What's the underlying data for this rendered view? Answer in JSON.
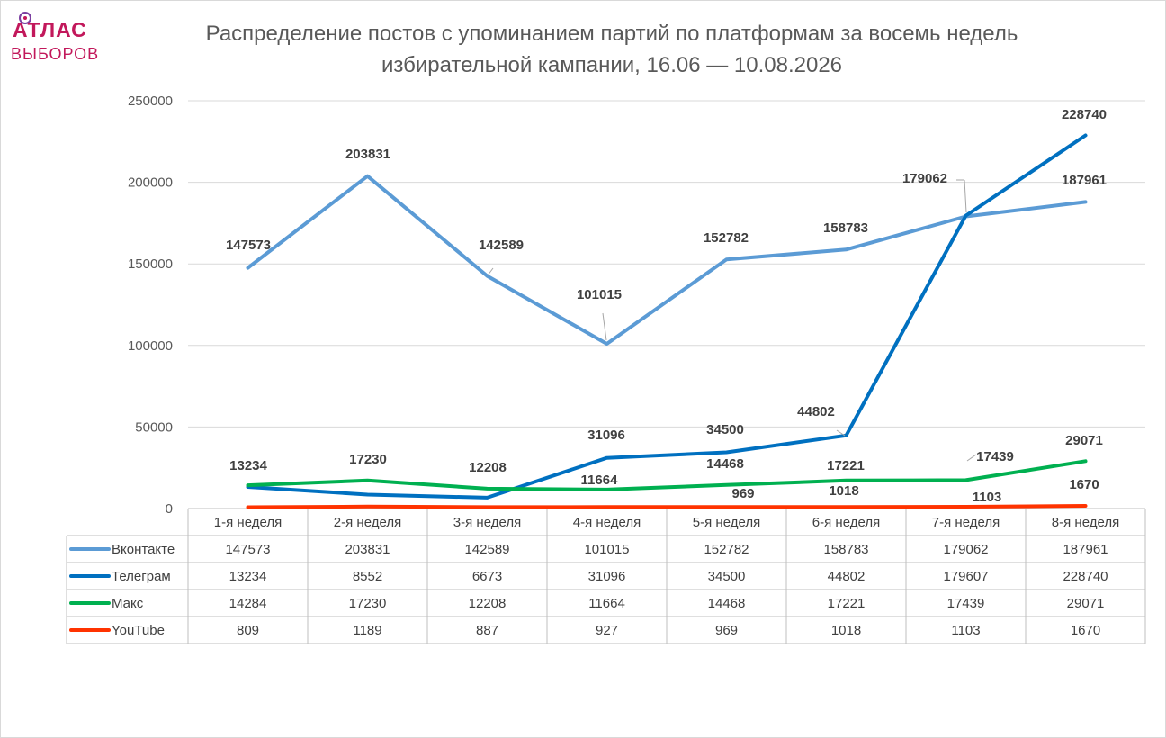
{
  "logo": {
    "line1": "АТЛАС",
    "line2": "ВЫБОРОВ"
  },
  "chart_data": {
    "type": "line",
    "title": "Распределение постов с упоминанием партий по платформам за восемь недель избирательной кампании, 16.06 — 10.08.2026",
    "title_lines": [
      "Распределение постов с упоминанием партий по платформам за восемь недель",
      "избирательной кампании, 16.06 — 10.08.2026"
    ],
    "categories": [
      "1-я неделя",
      "2-я неделя",
      "3-я неделя",
      "4-я неделя",
      "5-я неделя",
      "6-я неделя",
      "7-я неделя",
      "8-я неделя"
    ],
    "y_ticks": [
      "0",
      "50000",
      "100000",
      "150000",
      "200000",
      "250000"
    ],
    "ylim": [
      0,
      250000
    ],
    "grid": true,
    "legend": "data-table",
    "series": [
      {
        "name": "Вконтакте",
        "color": "#5b9bd5",
        "values": [
          147573,
          203831,
          142589,
          101015,
          152782,
          158783,
          179062,
          187961
        ]
      },
      {
        "name": "Телеграм",
        "color": "#0070c0",
        "values": [
          13234,
          8552,
          6673,
          31096,
          34500,
          44802,
          179607,
          228740
        ]
      },
      {
        "name": "Макс",
        "color": "#00b050",
        "values": [
          14284,
          17230,
          12208,
          11664,
          14468,
          17221,
          17439,
          29071
        ]
      },
      {
        "name": "YouTube",
        "color": "#ff3300",
        "values": [
          809,
          1189,
          887,
          927,
          969,
          1018,
          1103,
          1670
        ]
      }
    ],
    "data_labels": [
      {
        "text": "147573"
      },
      {
        "text": "203831"
      },
      {
        "text": "142589"
      },
      {
        "text": "101015"
      },
      {
        "text": "152782"
      },
      {
        "text": "158783"
      },
      {
        "text": "179062"
      },
      {
        "text": "187961"
      },
      {
        "text": "228740"
      },
      {
        "text": "44802"
      },
      {
        "text": "34500"
      },
      {
        "text": "31096"
      },
      {
        "text": "13234"
      },
      {
        "text": "17230"
      },
      {
        "text": "12208"
      },
      {
        "text": "11664"
      },
      {
        "text": "14468"
      },
      {
        "text": "17221"
      },
      {
        "text": "17439"
      },
      {
        "text": "29071"
      },
      {
        "text": "969"
      },
      {
        "text": "1018"
      },
      {
        "text": "1103"
      },
      {
        "text": "1670"
      }
    ]
  }
}
